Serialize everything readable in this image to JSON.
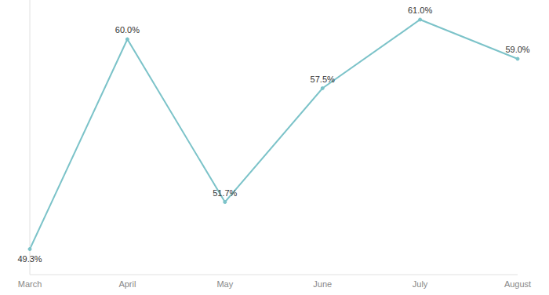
{
  "chart_data": {
    "type": "line",
    "categories": [
      "March",
      "April",
      "May",
      "June",
      "July",
      "August"
    ],
    "values": [
      49.3,
      60.0,
      51.7,
      57.5,
      61.0,
      59.0
    ],
    "value_labels": [
      "49.3%",
      "60.0%",
      "51.7%",
      "57.5%",
      "61.0%",
      "59.0%"
    ],
    "color": "#7cc3c9",
    "ylim": [
      48,
      62
    ],
    "yticks": [],
    "grid": false,
    "data_labels": true,
    "tick_labels": "x",
    "marker": "circle",
    "line_style": "solid"
  }
}
